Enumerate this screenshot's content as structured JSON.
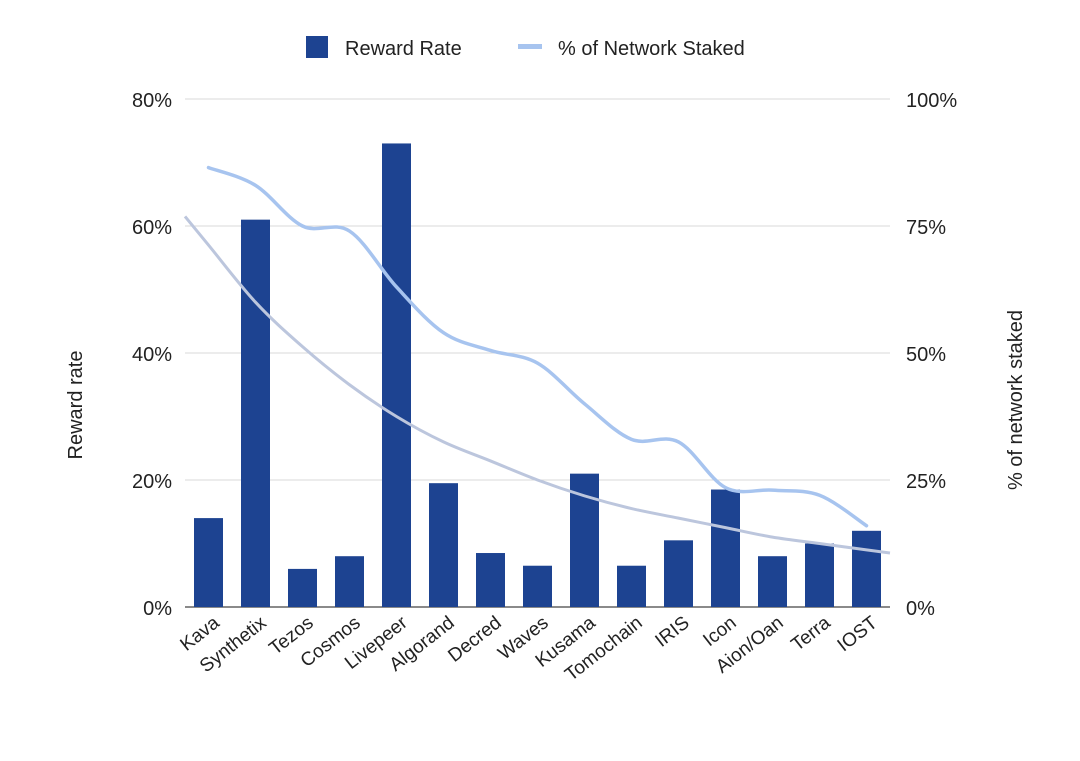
{
  "chart_data": {
    "type": "bar",
    "categories": [
      "Kava",
      "Synthetix",
      "Tezos",
      "Cosmos",
      "Livepeer",
      "Algorand",
      "Decred",
      "Waves",
      "Kusama",
      "Tomochain",
      "IRIS",
      "Icon",
      "Aion/Oan",
      "Terra",
      "IOST"
    ],
    "series": [
      {
        "name": "Reward Rate",
        "type": "bar",
        "axis": "left",
        "values": [
          14,
          61,
          6,
          8,
          73,
          19.5,
          8.5,
          6.5,
          21,
          6.5,
          10.5,
          18.5,
          8,
          10,
          12
        ]
      },
      {
        "name": "% of Network Staked",
        "type": "line",
        "axis": "right",
        "values": [
          86.5,
          83,
          75,
          74,
          63,
          54,
          50.5,
          48,
          40,
          33,
          32.5,
          23.5,
          23,
          22,
          16
        ]
      }
    ],
    "trendline": {
      "series": "Reward Rate",
      "fit": "exponential",
      "approx_values": [
        57,
        48,
        41,
        35,
        30,
        26,
        23,
        20,
        17.5,
        15.5,
        14,
        12.5,
        11,
        10,
        9
      ]
    },
    "ylabel": "Reward rate",
    "ylabel_right": "% of network staked",
    "ylim": [
      0,
      80
    ],
    "ylim_right": [
      0,
      100
    ],
    "yticks": [
      "0%",
      "20%",
      "40%",
      "60%",
      "80%"
    ],
    "yticks_right": [
      "0%",
      "25%",
      "50%",
      "75%",
      "100%"
    ],
    "grid": true,
    "legend_position": "top",
    "colors": {
      "bar": "#1d4391",
      "line": "#a7c4ef",
      "trendline": "#bcc6dd",
      "grid": "#d9d9d9"
    }
  }
}
